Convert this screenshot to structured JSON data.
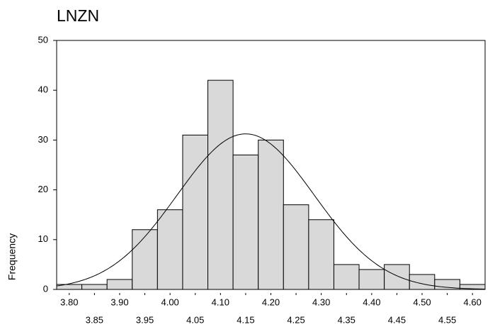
{
  "chart_data": {
    "type": "histogram",
    "title": "LNZN",
    "y_label": "Frequency",
    "bins": [
      3.775,
      3.825,
      3.875,
      3.925,
      3.975,
      4.025,
      4.075,
      4.125,
      4.175,
      4.225,
      4.275,
      4.325,
      4.375,
      4.425,
      4.475,
      4.525,
      4.575,
      4.625
    ],
    "values": [
      1,
      1,
      2,
      12,
      16,
      31,
      42,
      27,
      30,
      17,
      14,
      5,
      4,
      5,
      3,
      2,
      1
    ],
    "color": "#d9d9d9",
    "xlim": [
      3.775,
      4.625
    ],
    "xticks": [
      {
        "value": 3.8,
        "label": "3.80"
      },
      {
        "value": 3.85,
        "label": "3.85"
      },
      {
        "value": 3.9,
        "label": "3.90"
      },
      {
        "value": 3.95,
        "label": "3.95"
      },
      {
        "value": 4.0,
        "label": "4.00"
      },
      {
        "value": 4.05,
        "label": "4.05"
      },
      {
        "value": 4.1,
        "label": "4.10"
      },
      {
        "value": 4.15,
        "label": "4.15"
      },
      {
        "value": 4.2,
        "label": "4.20"
      },
      {
        "value": 4.25,
        "label": "4.25"
      },
      {
        "value": 4.3,
        "label": "4.30"
      },
      {
        "value": 4.35,
        "label": "4.35"
      },
      {
        "value": 4.4,
        "label": "4.40"
      },
      {
        "value": 4.45,
        "label": "4.45"
      },
      {
        "value": 4.5,
        "label": "4.50"
      },
      {
        "value": 4.55,
        "label": "4.55"
      },
      {
        "value": 4.6,
        "label": "4.60"
      }
    ],
    "ylim": [
      0,
      50
    ],
    "yticks": [
      0,
      10,
      20,
      30,
      40,
      50
    ],
    "normal_curve": {
      "mean": 4.15,
      "std": 0.136,
      "n": 213
    }
  }
}
